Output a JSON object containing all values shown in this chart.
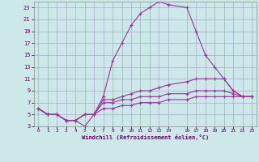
{
  "xlabel": "Windchill (Refroidissement éolien,°C)",
  "bg_color": "#cce8e8",
  "grid_color": "#aaaacc",
  "line_color": "#993399",
  "xlim": [
    -0.5,
    23.5
  ],
  "ylim": [
    3,
    24
  ],
  "xticks": [
    0,
    1,
    2,
    3,
    4,
    5,
    6,
    7,
    8,
    9,
    10,
    11,
    12,
    13,
    14,
    16,
    17,
    18,
    19,
    20,
    21,
    22,
    23
  ],
  "xtick_labels": [
    "0",
    "1",
    "2",
    "3",
    "4",
    "5",
    "6",
    "7",
    "8",
    "9",
    "10",
    "11",
    "12",
    "13",
    "14",
    "16",
    "17",
    "18",
    "19",
    "20",
    "21",
    "22",
    "23"
  ],
  "yticks": [
    3,
    5,
    7,
    9,
    11,
    13,
    15,
    17,
    19,
    21,
    23
  ],
  "ytick_labels": [
    "3",
    "5",
    "7",
    "9",
    "11",
    "13",
    "15",
    "17",
    "19",
    "21",
    "23"
  ],
  "lines": [
    {
      "x": [
        0,
        1,
        2,
        3,
        4,
        5,
        6,
        7,
        8,
        9,
        10,
        11,
        12,
        13,
        14,
        16,
        17,
        18,
        19,
        20,
        21,
        22,
        23
      ],
      "y": [
        6,
        5,
        5,
        4,
        4,
        3,
        5,
        8,
        14,
        17,
        20,
        22,
        23,
        24,
        23.5,
        23,
        19,
        15,
        13,
        11,
        9,
        8,
        8
      ]
    },
    {
      "x": [
        0,
        1,
        2,
        3,
        4,
        5,
        6,
        7,
        8,
        9,
        10,
        11,
        12,
        13,
        14,
        16,
        17,
        18,
        19,
        20,
        21,
        22,
        23
      ],
      "y": [
        6,
        5,
        5,
        4,
        4,
        5,
        5,
        7.5,
        7.5,
        8,
        8.5,
        9,
        9,
        9.5,
        10,
        10.5,
        11,
        11,
        11,
        11,
        9,
        8,
        8
      ]
    },
    {
      "x": [
        0,
        1,
        2,
        3,
        4,
        5,
        6,
        7,
        8,
        9,
        10,
        11,
        12,
        13,
        14,
        16,
        17,
        18,
        19,
        20,
        21,
        22,
        23
      ],
      "y": [
        6,
        5,
        5,
        4,
        4,
        5,
        5,
        7,
        7,
        7.5,
        7.5,
        8,
        8,
        8,
        8.5,
        8.5,
        9,
        9,
        9,
        9,
        8.5,
        8,
        8
      ]
    },
    {
      "x": [
        0,
        1,
        2,
        3,
        4,
        5,
        6,
        7,
        8,
        9,
        10,
        11,
        12,
        13,
        14,
        16,
        17,
        18,
        19,
        20,
        21,
        22,
        23
      ],
      "y": [
        6,
        5,
        5,
        4,
        4,
        5,
        5,
        6,
        6,
        6.5,
        6.5,
        7,
        7,
        7,
        7.5,
        7.5,
        8,
        8,
        8,
        8,
        8,
        8,
        8
      ]
    }
  ]
}
